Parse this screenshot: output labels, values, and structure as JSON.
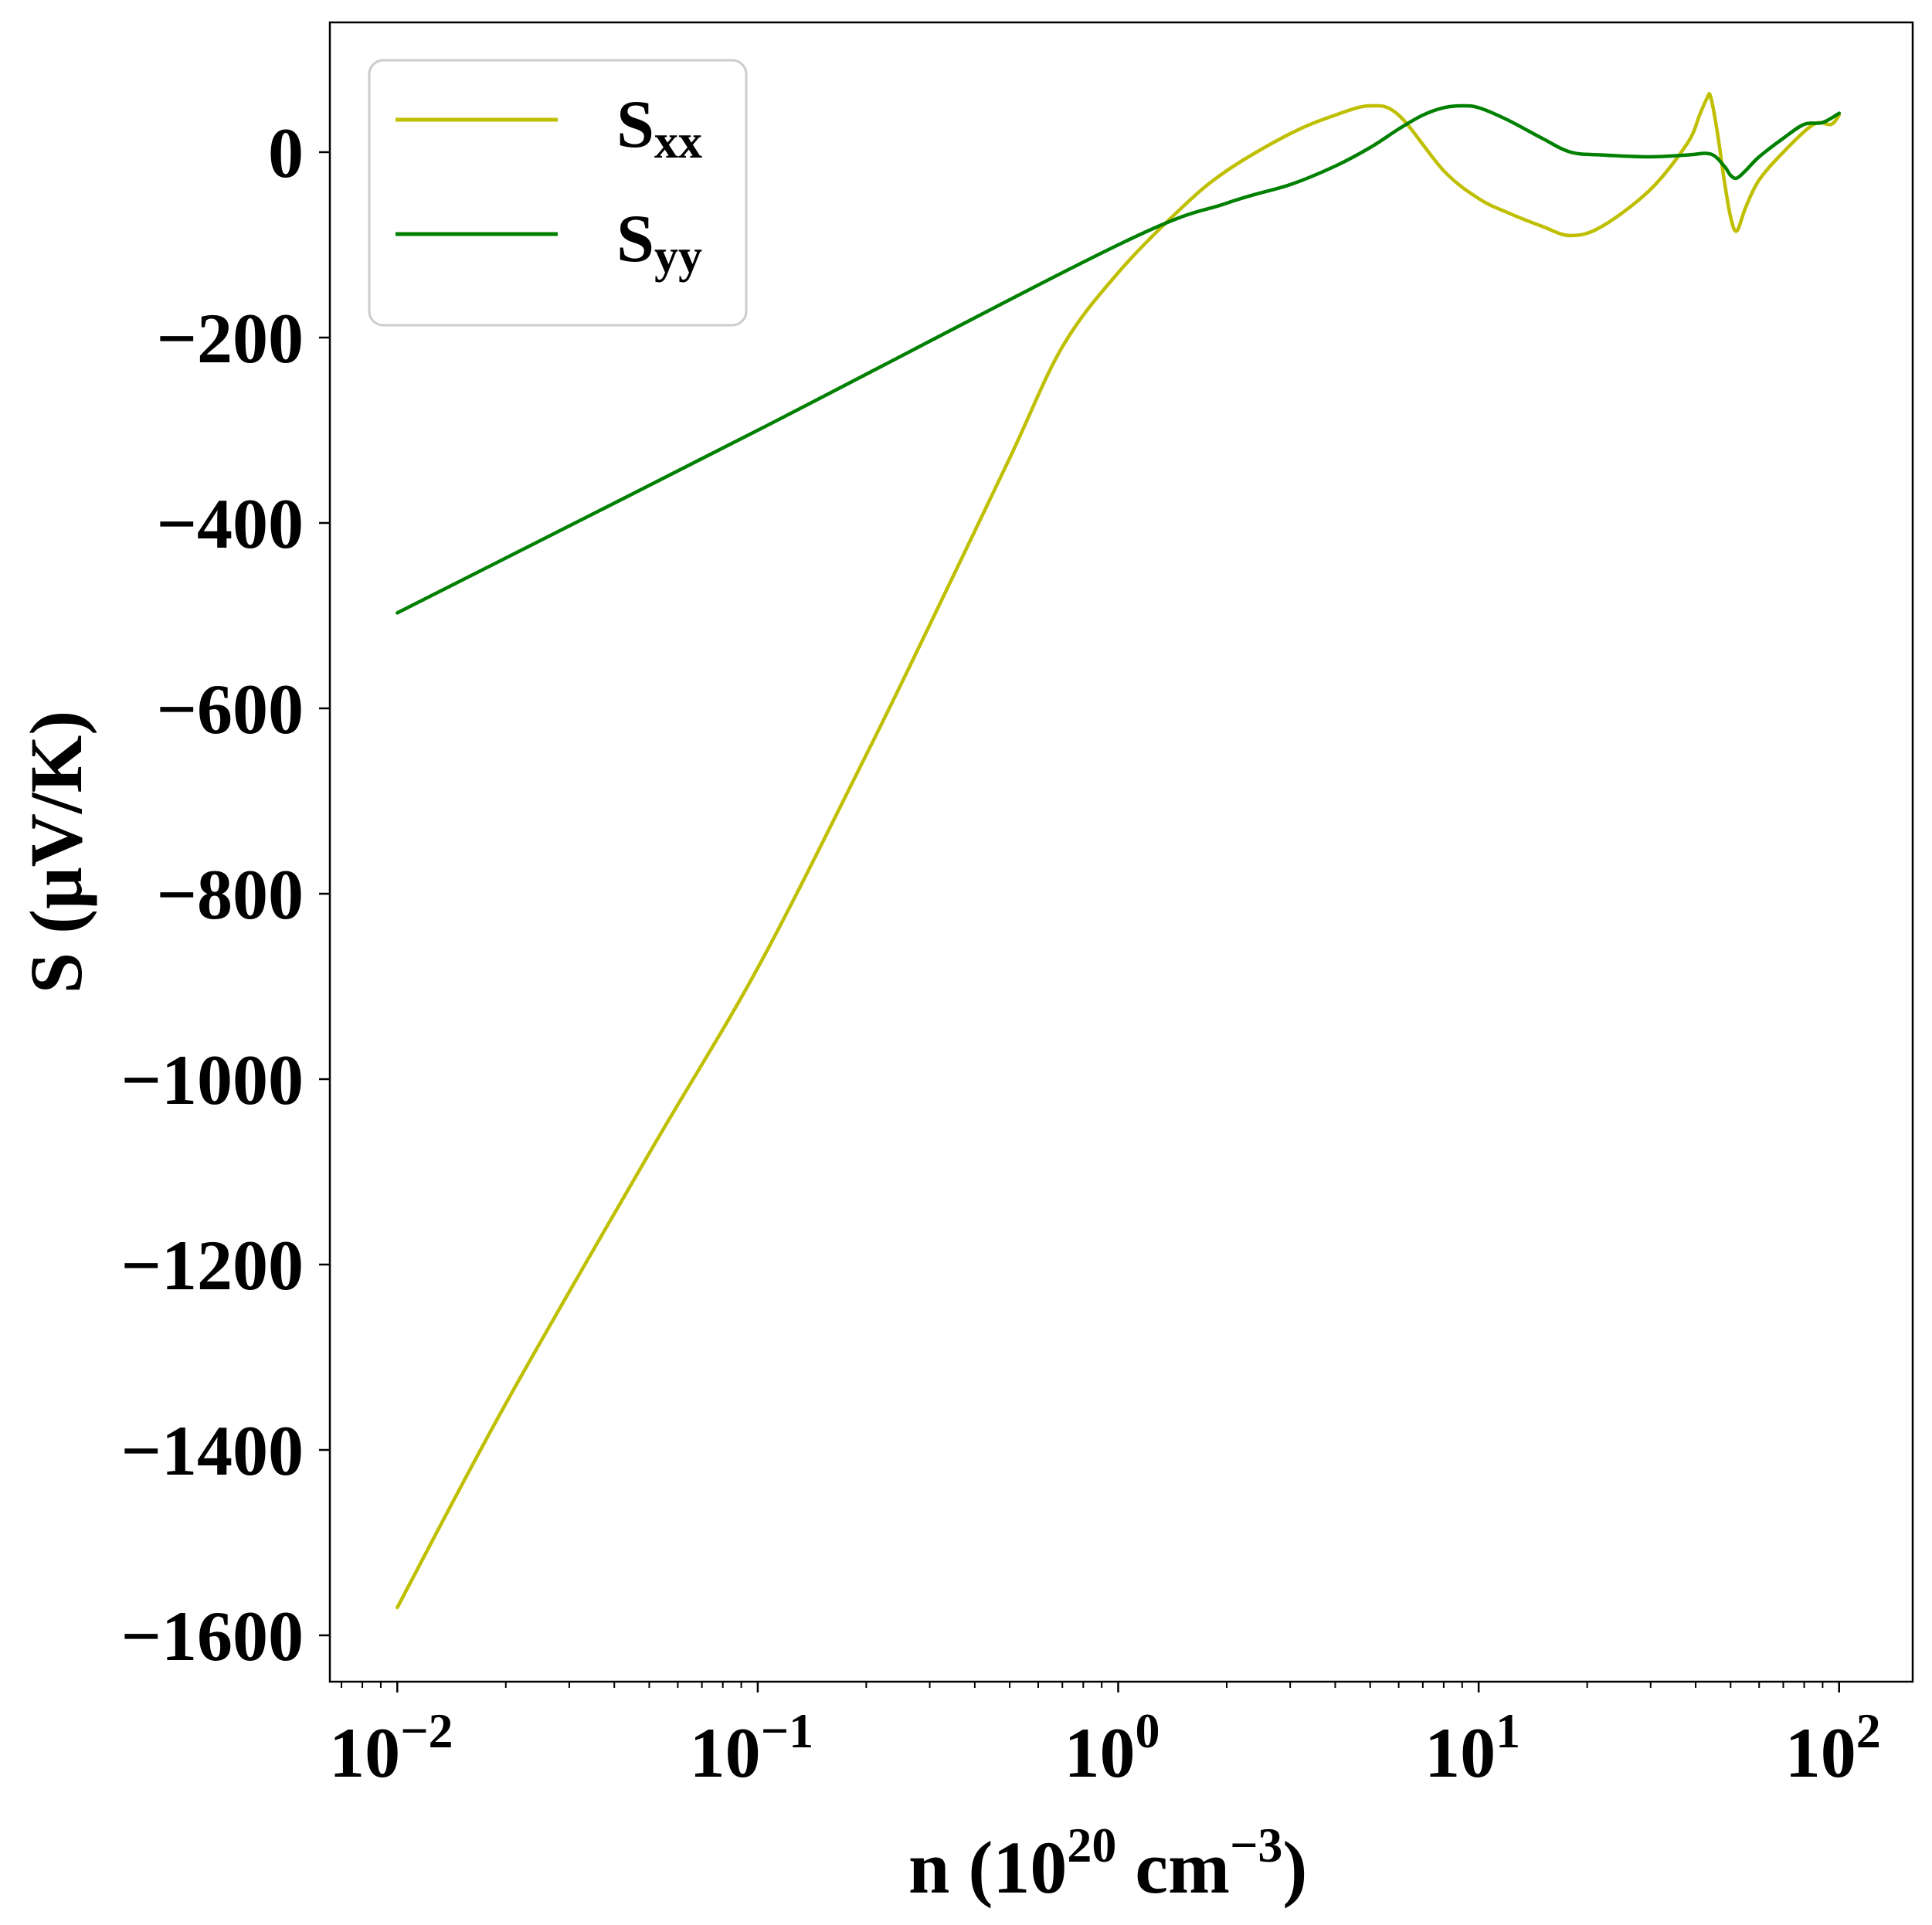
{
  "chart_data": {
    "type": "line",
    "xscale": "log",
    "xlim": [
      0.0065,
      160
    ],
    "ylim": [
      -1650,
      140
    ],
    "xlabel": "n (10",
    "xlabel_sup1": "20",
    "xlabel_mid": " cm",
    "xlabel_sup2": "−3",
    "xlabel_end": ")",
    "ylabel": "S (μV/K)",
    "yticks": [
      0,
      -200,
      -400,
      -600,
      -800,
      -1000,
      -1200,
      -1400,
      -1600
    ],
    "ytick_labels": [
      "0",
      "−200",
      "−400",
      "−600",
      "−800",
      "−1000",
      "−1200",
      "−1400",
      "−1600"
    ],
    "xticks": [
      {
        "value": 0.01,
        "base": "10",
        "exp": "−2"
      },
      {
        "value": 0.1,
        "base": "10",
        "exp": "−1"
      },
      {
        "value": 1,
        "base": "10",
        "exp": "0"
      },
      {
        "value": 10,
        "base": "10",
        "exp": "1"
      },
      {
        "value": 100,
        "base": "10",
        "exp": "2"
      }
    ],
    "legend_position": "top-left",
    "series": [
      {
        "name": "S",
        "sub": "xx",
        "color": "#bfbf00",
        "x": [
          0.01,
          0.02,
          0.05,
          0.1,
          0.2,
          0.3,
          0.5,
          0.7,
          1.0,
          1.5,
          2.0,
          3.0,
          4.0,
          5.0,
          6.0,
          8.0,
          10.0,
          12.0,
          15.0,
          18.0,
          22.0,
          30.0,
          38.0,
          41.0,
          43.0,
          44.0,
          46.0,
          48.0,
          50.0,
          52.0,
          55.0,
          60.0,
          70.0,
          85.0,
          95.0,
          100.0
        ],
        "y": [
          -1570,
          -1350,
          -1080,
          -880,
          -650,
          -510,
          -330,
          -210,
          -130,
          -60,
          -20,
          20,
          40,
          50,
          40,
          -20,
          -50,
          -65,
          -80,
          -90,
          -80,
          -40,
          10,
          40,
          58,
          60,
          20,
          -30,
          -70,
          -85,
          -60,
          -30,
          0,
          30,
          30,
          40
        ]
      },
      {
        "name": "S",
        "sub": "yy",
        "color": "#008000",
        "x": [
          0.01,
          0.1,
          1.0,
          2.0,
          3.0,
          4.0,
          5.0,
          6.0,
          7.0,
          8.0,
          9.0,
          10.0,
          12.0,
          15.0,
          18.0,
          22.0,
          30.0,
          38.0,
          44.0,
          48.0,
          50.0,
          52.0,
          55.0,
          60.0,
          70.0,
          80.0,
          90.0,
          100.0
        ],
        "y": [
          -497,
          -300,
          -100,
          -55,
          -35,
          -15,
          5,
          25,
          40,
          48,
          50,
          48,
          35,
          15,
          0,
          -3,
          -5,
          -3,
          -2,
          -15,
          -25,
          -28,
          -20,
          -5,
          15,
          30,
          32,
          42
        ]
      }
    ]
  }
}
